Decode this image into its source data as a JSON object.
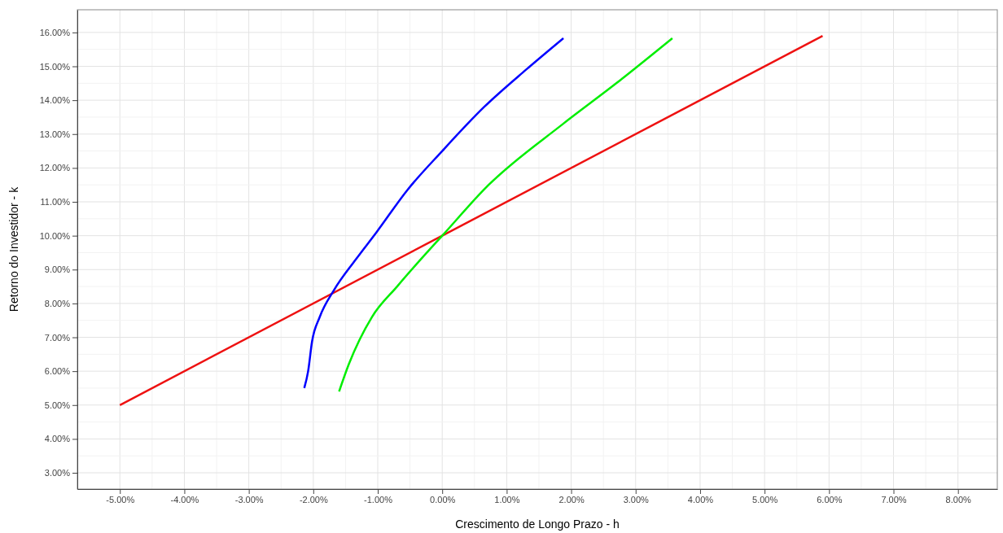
{
  "chart_data": {
    "type": "line",
    "xlabel": "Crescimento de Longo Prazo - h",
    "ylabel": "Retorno do Investidor - k",
    "xlim": [
      -5.66,
      8.61
    ],
    "ylim": [
      2.52,
      16.67
    ],
    "xticks": [
      {
        "value": -5,
        "label": "-5.00%"
      },
      {
        "value": -4,
        "label": "-4.00%"
      },
      {
        "value": -3,
        "label": "-3.00%"
      },
      {
        "value": -2,
        "label": "-2.00%"
      },
      {
        "value": -1,
        "label": "-1.00%"
      },
      {
        "value": 0,
        "label": "0.00%"
      },
      {
        "value": 1,
        "label": "1.00%"
      },
      {
        "value": 2,
        "label": "2.00%"
      },
      {
        "value": 3,
        "label": "3.00%"
      },
      {
        "value": 4,
        "label": "4.00%"
      },
      {
        "value": 5,
        "label": "5.00%"
      },
      {
        "value": 6,
        "label": "6.00%"
      },
      {
        "value": 7,
        "label": "7.00%"
      },
      {
        "value": 8,
        "label": "8.00%"
      }
    ],
    "yticks": [
      {
        "value": 3,
        "label": "3.00%"
      },
      {
        "value": 4,
        "label": "4.00%"
      },
      {
        "value": 5,
        "label": "5.00%"
      },
      {
        "value": 6,
        "label": "6.00%"
      },
      {
        "value": 7,
        "label": "7.00%"
      },
      {
        "value": 8,
        "label": "8.00%"
      },
      {
        "value": 9,
        "label": "9.00%"
      },
      {
        "value": 10,
        "label": "10.00%"
      },
      {
        "value": 11,
        "label": "11.00%"
      },
      {
        "value": 12,
        "label": "12.00%"
      },
      {
        "value": 13,
        "label": "13.00%"
      },
      {
        "value": 14,
        "label": "14.00%"
      },
      {
        "value": 15,
        "label": "15.00%"
      },
      {
        "value": 16,
        "label": "16.00%"
      }
    ],
    "grid": true,
    "line_style": "solid",
    "marker": "none",
    "series": [
      {
        "color": "#ee1111",
        "x": [
          -5,
          0,
          5.9
        ],
        "values": [
          5,
          10,
          15.9
        ]
      },
      {
        "color": "#0000ff",
        "x": [
          -2.14,
          -2.08,
          -2.02,
          -1.9,
          -1.68,
          -1.34,
          -1.02,
          -0.54,
          0,
          0.65,
          1.3,
          1.88
        ],
        "values": [
          5.5,
          6.0,
          6.87,
          7.6,
          8.39,
          9.3,
          10.1,
          11.35,
          12.5,
          13.8,
          14.9,
          15.83
        ]
      },
      {
        "color": "#00ee00",
        "x": [
          -1.6,
          -1.45,
          -1.09,
          -0.7,
          -0.38,
          0,
          0.72,
          1.86,
          2.7,
          3.57
        ],
        "values": [
          5.4,
          6.2,
          7.6,
          8.5,
          9.2,
          10,
          11.5,
          13.28,
          14.5,
          15.83
        ]
      }
    ]
  }
}
